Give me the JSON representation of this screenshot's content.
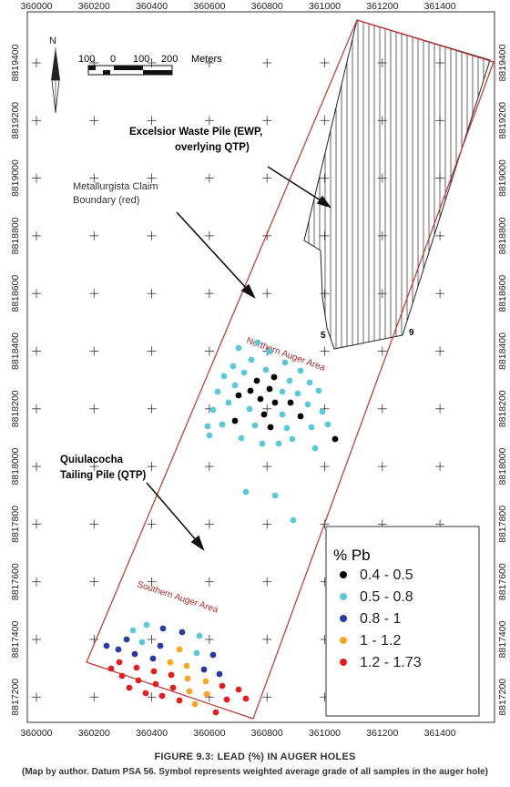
{
  "x_ticks": [
    "360000",
    "360200",
    "360400",
    "360600",
    "360800",
    "361000",
    "361200",
    "361400"
  ],
  "y_ticks": [
    "8819400",
    "8819200",
    "8819000",
    "8818800",
    "8818600",
    "8818400",
    "8818200",
    "8818000",
    "8817800",
    "8817600",
    "8817400",
    "8817200"
  ],
  "north_label": "N",
  "scalebar": {
    "labels": [
      "100",
      "0",
      "100",
      "200"
    ],
    "units": "Meters"
  },
  "annotations": {
    "ewp_line1": "Excelsior Waste Pile (EWP,",
    "ewp_line2": "overlying QTP)",
    "boundary_line1": "Metallurgista Claim",
    "boundary_line2": "Boundary (red)",
    "qtp_line1": "Quiulacocha",
    "qtp_line2": "Tailing Pile (QTP)",
    "northern_area": "Northern Auger Area",
    "southern_area": "Southern Auger Area",
    "vertex_5": "5",
    "vertex_9": "9"
  },
  "legend": {
    "title": "% Pb",
    "items": [
      {
        "label": "0.4 - 0.5",
        "color": "#000000"
      },
      {
        "label": "0.5 - 0.8",
        "color": "#5bc8d8"
      },
      {
        "label": "0.8 - 1",
        "color": "#2a3a9a"
      },
      {
        "label": "1 - 1.2",
        "color": "#f5a623"
      },
      {
        "label": "1.2 - 1.73",
        "color": "#e02020"
      }
    ]
  },
  "colors": {
    "boundary": "#c03030",
    "grid_cross": "#333333"
  },
  "caption": {
    "title": "FIGURE 9.3: LEAD (%) IN AUGER HOLES",
    "note": "(Map by author. Datum PSA 56. Symbol represents weighted average grade of all samples in the auger hole)"
  }
}
